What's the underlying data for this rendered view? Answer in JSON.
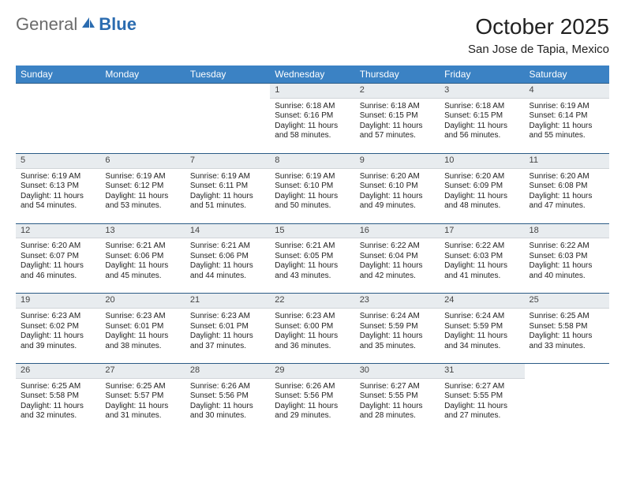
{
  "logo": {
    "general": "General",
    "blue": "Blue"
  },
  "title": "October 2025",
  "location": "San Jose de Tapia, Mexico",
  "columns": [
    "Sunday",
    "Monday",
    "Tuesday",
    "Wednesday",
    "Thursday",
    "Friday",
    "Saturday"
  ],
  "colors": {
    "header_bg": "#3b82c4",
    "header_text": "#ffffff",
    "daynum_bg": "#e8ecef",
    "rule": "#2b5b86",
    "logo_gray": "#6b6b6b",
    "logo_blue": "#2b6cb0"
  },
  "weeks": [
    {
      "nums": [
        "",
        "",
        "",
        "1",
        "2",
        "3",
        "4"
      ],
      "details": [
        "",
        "",
        "",
        "Sunrise: 6:18 AM\nSunset: 6:16 PM\nDaylight: 11 hours and 58 minutes.",
        "Sunrise: 6:18 AM\nSunset: 6:15 PM\nDaylight: 11 hours and 57 minutes.",
        "Sunrise: 6:18 AM\nSunset: 6:15 PM\nDaylight: 11 hours and 56 minutes.",
        "Sunrise: 6:19 AM\nSunset: 6:14 PM\nDaylight: 11 hours and 55 minutes."
      ]
    },
    {
      "nums": [
        "5",
        "6",
        "7",
        "8",
        "9",
        "10",
        "11"
      ],
      "details": [
        "Sunrise: 6:19 AM\nSunset: 6:13 PM\nDaylight: 11 hours and 54 minutes.",
        "Sunrise: 6:19 AM\nSunset: 6:12 PM\nDaylight: 11 hours and 53 minutes.",
        "Sunrise: 6:19 AM\nSunset: 6:11 PM\nDaylight: 11 hours and 51 minutes.",
        "Sunrise: 6:19 AM\nSunset: 6:10 PM\nDaylight: 11 hours and 50 minutes.",
        "Sunrise: 6:20 AM\nSunset: 6:10 PM\nDaylight: 11 hours and 49 minutes.",
        "Sunrise: 6:20 AM\nSunset: 6:09 PM\nDaylight: 11 hours and 48 minutes.",
        "Sunrise: 6:20 AM\nSunset: 6:08 PM\nDaylight: 11 hours and 47 minutes."
      ]
    },
    {
      "nums": [
        "12",
        "13",
        "14",
        "15",
        "16",
        "17",
        "18"
      ],
      "details": [
        "Sunrise: 6:20 AM\nSunset: 6:07 PM\nDaylight: 11 hours and 46 minutes.",
        "Sunrise: 6:21 AM\nSunset: 6:06 PM\nDaylight: 11 hours and 45 minutes.",
        "Sunrise: 6:21 AM\nSunset: 6:06 PM\nDaylight: 11 hours and 44 minutes.",
        "Sunrise: 6:21 AM\nSunset: 6:05 PM\nDaylight: 11 hours and 43 minutes.",
        "Sunrise: 6:22 AM\nSunset: 6:04 PM\nDaylight: 11 hours and 42 minutes.",
        "Sunrise: 6:22 AM\nSunset: 6:03 PM\nDaylight: 11 hours and 41 minutes.",
        "Sunrise: 6:22 AM\nSunset: 6:03 PM\nDaylight: 11 hours and 40 minutes."
      ]
    },
    {
      "nums": [
        "19",
        "20",
        "21",
        "22",
        "23",
        "24",
        "25"
      ],
      "details": [
        "Sunrise: 6:23 AM\nSunset: 6:02 PM\nDaylight: 11 hours and 39 minutes.",
        "Sunrise: 6:23 AM\nSunset: 6:01 PM\nDaylight: 11 hours and 38 minutes.",
        "Sunrise: 6:23 AM\nSunset: 6:01 PM\nDaylight: 11 hours and 37 minutes.",
        "Sunrise: 6:23 AM\nSunset: 6:00 PM\nDaylight: 11 hours and 36 minutes.",
        "Sunrise: 6:24 AM\nSunset: 5:59 PM\nDaylight: 11 hours and 35 minutes.",
        "Sunrise: 6:24 AM\nSunset: 5:59 PM\nDaylight: 11 hours and 34 minutes.",
        "Sunrise: 6:25 AM\nSunset: 5:58 PM\nDaylight: 11 hours and 33 minutes."
      ]
    },
    {
      "nums": [
        "26",
        "27",
        "28",
        "29",
        "30",
        "31",
        ""
      ],
      "details": [
        "Sunrise: 6:25 AM\nSunset: 5:58 PM\nDaylight: 11 hours and 32 minutes.",
        "Sunrise: 6:25 AM\nSunset: 5:57 PM\nDaylight: 11 hours and 31 minutes.",
        "Sunrise: 6:26 AM\nSunset: 5:56 PM\nDaylight: 11 hours and 30 minutes.",
        "Sunrise: 6:26 AM\nSunset: 5:56 PM\nDaylight: 11 hours and 29 minutes.",
        "Sunrise: 6:27 AM\nSunset: 5:55 PM\nDaylight: 11 hours and 28 minutes.",
        "Sunrise: 6:27 AM\nSunset: 5:55 PM\nDaylight: 11 hours and 27 minutes.",
        ""
      ]
    }
  ]
}
